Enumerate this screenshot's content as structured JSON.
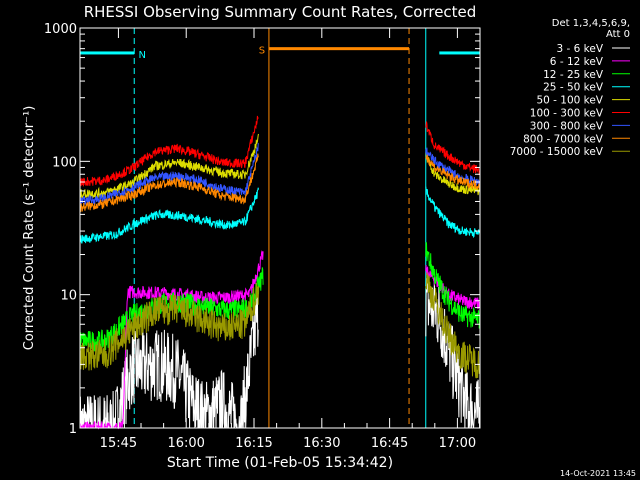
{
  "chart_data": {
    "type": "line",
    "title": "RHESSI Observing Summary Count Rates, Corrected",
    "xlabel": "Start Time (01-Feb-05 15:34:42)",
    "ylabel": "Corrected Count Rate (s⁻¹ detector⁻¹)",
    "y_scale": "log",
    "ylim": [
      1,
      1000
    ],
    "xlim_minutes_after_1534": [
      2.5,
      91
    ],
    "x_ticks": [
      {
        "label": "15:45",
        "minute": 11
      },
      {
        "label": "16:00",
        "minute": 26
      },
      {
        "label": "16:15",
        "minute": 41
      },
      {
        "label": "16:30",
        "minute": 56
      },
      {
        "label": "16:45",
        "minute": 71
      },
      {
        "label": "17:00",
        "minute": 86
      }
    ],
    "y_ticks": [
      {
        "label": "1",
        "value": 1
      },
      {
        "label": "10",
        "value": 10
      },
      {
        "label": "100",
        "value": 100
      },
      {
        "label": "1000",
        "value": 1000
      }
    ],
    "legend_header": [
      "Det 1,3,4,5,6,9,",
      "Att 0"
    ],
    "legend_position": "right",
    "series": [
      {
        "name": "3 - 6 keV",
        "color": "#ffffff",
        "pre": [
          [
            2.5,
            1.0
          ],
          [
            10,
            1.0
          ],
          [
            14,
            2.8
          ],
          [
            20,
            3.0
          ],
          [
            24,
            2.6
          ],
          [
            27,
            1.6
          ],
          [
            30,
            1.2
          ],
          [
            34,
            1.5
          ],
          [
            38,
            1.0
          ],
          [
            42,
            8
          ]
        ],
        "post": [
          [
            79,
            9
          ],
          [
            82,
            7
          ],
          [
            85,
            3
          ],
          [
            88,
            1.5
          ],
          [
            91,
            1.2
          ]
        ]
      },
      {
        "name": "6 - 12 keV",
        "color": "#ff00ff",
        "pre": [
          [
            2.5,
            1.0
          ],
          [
            12,
            1.0
          ],
          [
            13,
            10.5
          ],
          [
            20,
            10.3
          ],
          [
            26,
            10.0
          ],
          [
            30,
            9.5
          ],
          [
            35,
            9.5
          ],
          [
            40,
            10
          ],
          [
            43,
            20
          ]
        ],
        "post": [
          [
            79,
            15
          ],
          [
            81,
            13
          ],
          [
            84,
            10
          ],
          [
            87,
            9
          ],
          [
            91,
            8.5
          ]
        ]
      },
      {
        "name": "12 - 25 keV",
        "color": "#00ff00",
        "pre": [
          [
            2.5,
            4.5
          ],
          [
            8,
            4.5
          ],
          [
            14,
            7
          ],
          [
            20,
            8.5
          ],
          [
            25,
            8.8
          ],
          [
            30,
            8
          ],
          [
            36,
            7.6
          ],
          [
            40,
            8
          ],
          [
            43,
            14
          ]
        ],
        "post": [
          [
            79,
            22
          ],
          [
            81,
            14
          ],
          [
            84,
            9
          ],
          [
            87,
            7
          ],
          [
            91,
            6.5
          ]
        ]
      },
      {
        "name": "25 - 50 keV",
        "color": "#00ffff",
        "pre": [
          [
            2.5,
            26
          ],
          [
            10,
            28
          ],
          [
            16,
            36
          ],
          [
            20,
            40
          ],
          [
            25,
            39
          ],
          [
            30,
            36
          ],
          [
            35,
            33
          ],
          [
            39,
            35
          ],
          [
            42,
            60
          ]
        ],
        "post": [
          [
            79,
            60
          ],
          [
            81,
            45
          ],
          [
            84,
            34
          ],
          [
            87,
            30
          ],
          [
            91,
            29
          ]
        ]
      },
      {
        "name": "50 - 100 keV",
        "color": "#dddd00",
        "pre": [
          [
            2.5,
            57
          ],
          [
            8,
            58
          ],
          [
            14,
            68
          ],
          [
            19,
            92
          ],
          [
            24,
            98
          ],
          [
            29,
            90
          ],
          [
            34,
            82
          ],
          [
            39,
            79
          ],
          [
            42,
            150
          ]
        ],
        "post": [
          [
            79,
            110
          ],
          [
            81,
            80
          ],
          [
            84,
            68
          ],
          [
            87,
            62
          ],
          [
            91,
            60
          ]
        ]
      },
      {
        "name": "100 - 300 keV",
        "color": "#ff0000",
        "pre": [
          [
            2.5,
            70
          ],
          [
            8,
            72
          ],
          [
            14,
            88
          ],
          [
            19,
            118
          ],
          [
            24,
            125
          ],
          [
            29,
            112
          ],
          [
            34,
            98
          ],
          [
            39,
            96
          ],
          [
            42,
            220
          ]
        ],
        "post": [
          [
            79,
            190
          ],
          [
            81,
            130
          ],
          [
            84,
            110
          ],
          [
            87,
            95
          ],
          [
            91,
            85
          ]
        ]
      },
      {
        "name": "300 - 800 keV",
        "color": "#3355ff",
        "pre": [
          [
            2.5,
            50
          ],
          [
            8,
            53
          ],
          [
            14,
            63
          ],
          [
            19,
            75
          ],
          [
            24,
            78
          ],
          [
            29,
            72
          ],
          [
            34,
            62
          ],
          [
            39,
            58
          ],
          [
            42,
            130
          ]
        ],
        "post": [
          [
            79,
            120
          ],
          [
            81,
            100
          ],
          [
            84,
            85
          ],
          [
            87,
            75
          ],
          [
            91,
            70
          ]
        ]
      },
      {
        "name": "800 - 7000 keV",
        "color": "#ff8800",
        "pre": [
          [
            2.5,
            45
          ],
          [
            8,
            48
          ],
          [
            14,
            56
          ],
          [
            19,
            66
          ],
          [
            24,
            70
          ],
          [
            29,
            64
          ],
          [
            34,
            55
          ],
          [
            39,
            52
          ],
          [
            42,
            110
          ]
        ],
        "post": [
          [
            79,
            110
          ],
          [
            81,
            90
          ],
          [
            84,
            78
          ],
          [
            87,
            70
          ],
          [
            91,
            66
          ]
        ]
      },
      {
        "name": "7000 - 15000 keV",
        "color": "#999900",
        "pre": [
          [
            2.5,
            3.5
          ],
          [
            8,
            3.5
          ],
          [
            14,
            5.5
          ],
          [
            19,
            7.5
          ],
          [
            24,
            7.8
          ],
          [
            29,
            6.5
          ],
          [
            34,
            5.5
          ],
          [
            39,
            6
          ],
          [
            42,
            11
          ]
        ],
        "post": [
          [
            79,
            13
          ],
          [
            81,
            9
          ],
          [
            84,
            5
          ],
          [
            87,
            3.5
          ],
          [
            91,
            3
          ]
        ]
      }
    ],
    "annotations": [
      {
        "label": "N",
        "kind": "night",
        "color": "#00ffff",
        "level": 650,
        "bars": [
          [
            2.5,
            14.5
          ],
          [
            82,
            91
          ]
        ]
      },
      {
        "label": "S",
        "kind": "saa",
        "color": "#ff8800",
        "level": 700,
        "bars": [
          [
            44.3,
            75.3
          ]
        ]
      }
    ],
    "vlines": [
      {
        "minute": 2.5,
        "color": "#00ffff",
        "style": "solid"
      },
      {
        "minute": 14.5,
        "color": "#00ffff",
        "style": "dashed"
      },
      {
        "minute": 44.3,
        "color": "#ff8800",
        "style": "solid"
      },
      {
        "minute": 75.3,
        "color": "#ff8800",
        "style": "dashed"
      },
      {
        "minute": 79,
        "color": "#00ffff",
        "style": "solid"
      },
      {
        "minute": 91,
        "color": "#00ffff",
        "style": "dashed"
      }
    ],
    "footer_date": "14-Oct-2021 13:45"
  }
}
